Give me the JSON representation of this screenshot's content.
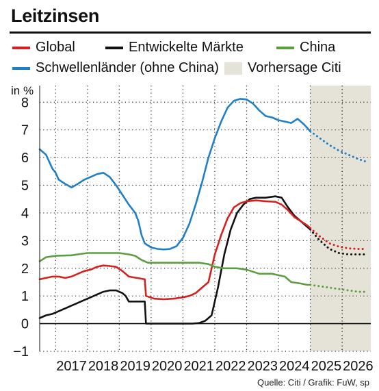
{
  "title": "Leitzinsen",
  "source": "Quelle: Citi / Grafik: FuW, sp",
  "legend": {
    "global": "Global",
    "developed": "Entwickelte Märkte",
    "china": "China",
    "emerging": "Schwellenländer (ohne China)",
    "forecast": "Vorhersage Citi"
  },
  "chart_data": {
    "type": "line",
    "ylabel": "in %",
    "ylim": [
      -1,
      8.6
    ],
    "xlim": [
      2016.5,
      2026.9
    ],
    "yticks": [
      -1,
      0,
      1,
      2,
      3,
      4,
      5,
      6,
      7,
      8
    ],
    "xticks": [
      "2017",
      "2018",
      "2019",
      "2020",
      "2021",
      "2022",
      "2023",
      "2024",
      "2025",
      "2026"
    ],
    "forecast_start": 2025.0,
    "grid": true,
    "colors": {
      "global": "#d62020",
      "developed": "#111111",
      "china": "#5a9e3e",
      "emerging": "#1f7fc8",
      "forecast_band": "#e5e3d8"
    },
    "series": [
      {
        "key": "emerging",
        "name": "Schwellenländer (ohne China)",
        "points": [
          [
            2016.5,
            6.3
          ],
          [
            2016.7,
            6.1
          ],
          [
            2016.9,
            5.6
          ],
          [
            2017.0,
            5.45
          ],
          [
            2017.1,
            5.2
          ],
          [
            2017.3,
            5.05
          ],
          [
            2017.5,
            4.92
          ],
          [
            2017.7,
            5.05
          ],
          [
            2017.9,
            5.2
          ],
          [
            2018.1,
            5.3
          ],
          [
            2018.3,
            5.4
          ],
          [
            2018.5,
            5.45
          ],
          [
            2018.7,
            5.3
          ],
          [
            2018.9,
            5.0
          ],
          [
            2019.1,
            4.65
          ],
          [
            2019.3,
            4.3
          ],
          [
            2019.5,
            4.0
          ],
          [
            2019.6,
            3.7
          ],
          [
            2019.7,
            3.2
          ],
          [
            2019.8,
            2.9
          ],
          [
            2020.0,
            2.75
          ],
          [
            2020.2,
            2.7
          ],
          [
            2020.4,
            2.68
          ],
          [
            2020.6,
            2.7
          ],
          [
            2020.8,
            2.8
          ],
          [
            2021.0,
            3.1
          ],
          [
            2021.2,
            3.6
          ],
          [
            2021.4,
            4.3
          ],
          [
            2021.6,
            5.1
          ],
          [
            2021.8,
            6.0
          ],
          [
            2022.0,
            6.7
          ],
          [
            2022.2,
            7.3
          ],
          [
            2022.4,
            7.8
          ],
          [
            2022.6,
            8.05
          ],
          [
            2022.8,
            8.12
          ],
          [
            2023.0,
            8.1
          ],
          [
            2023.2,
            7.95
          ],
          [
            2023.4,
            7.7
          ],
          [
            2023.6,
            7.5
          ],
          [
            2023.8,
            7.45
          ],
          [
            2024.0,
            7.35
          ],
          [
            2024.2,
            7.3
          ],
          [
            2024.4,
            7.25
          ],
          [
            2024.6,
            7.4
          ],
          [
            2024.8,
            7.2
          ],
          [
            2025.0,
            6.95
          ]
        ],
        "forecast": [
          [
            2025.0,
            6.95
          ],
          [
            2025.3,
            6.7
          ],
          [
            2025.6,
            6.45
          ],
          [
            2025.9,
            6.25
          ],
          [
            2026.2,
            6.1
          ],
          [
            2026.5,
            5.95
          ],
          [
            2026.75,
            5.85
          ]
        ]
      },
      {
        "key": "developed",
        "name": "Entwickelte Märkte",
        "points": [
          [
            2016.5,
            0.2
          ],
          [
            2016.7,
            0.3
          ],
          [
            2016.9,
            0.35
          ],
          [
            2017.1,
            0.45
          ],
          [
            2017.3,
            0.55
          ],
          [
            2017.5,
            0.65
          ],
          [
            2017.7,
            0.75
          ],
          [
            2017.9,
            0.85
          ],
          [
            2018.1,
            0.95
          ],
          [
            2018.3,
            1.05
          ],
          [
            2018.5,
            1.15
          ],
          [
            2018.7,
            1.2
          ],
          [
            2018.9,
            1.2
          ],
          [
            2019.1,
            1.1
          ],
          [
            2019.2,
            1.0
          ],
          [
            2019.3,
            0.8
          ],
          [
            2019.8,
            0.8
          ],
          [
            2019.84,
            0.0
          ],
          [
            2021.3,
            0.0
          ],
          [
            2021.5,
            0.02
          ],
          [
            2021.7,
            0.1
          ],
          [
            2021.9,
            0.3
          ],
          [
            2022.1,
            1.3
          ],
          [
            2022.3,
            2.5
          ],
          [
            2022.5,
            3.4
          ],
          [
            2022.7,
            4.0
          ],
          [
            2022.9,
            4.3
          ],
          [
            2023.1,
            4.5
          ],
          [
            2023.3,
            4.55
          ],
          [
            2023.6,
            4.55
          ],
          [
            2023.9,
            4.6
          ],
          [
            2024.1,
            4.55
          ],
          [
            2024.3,
            4.2
          ],
          [
            2024.5,
            3.9
          ],
          [
            2024.7,
            3.7
          ],
          [
            2024.9,
            3.5
          ],
          [
            2025.0,
            3.4
          ]
        ],
        "forecast": [
          [
            2025.0,
            3.4
          ],
          [
            2025.3,
            3.0
          ],
          [
            2025.6,
            2.7
          ],
          [
            2025.9,
            2.55
          ],
          [
            2026.2,
            2.5
          ],
          [
            2026.5,
            2.5
          ],
          [
            2026.75,
            2.5
          ]
        ]
      },
      {
        "key": "global",
        "name": "Global",
        "points": [
          [
            2016.5,
            1.6
          ],
          [
            2016.7,
            1.65
          ],
          [
            2016.9,
            1.7
          ],
          [
            2017.1,
            1.7
          ],
          [
            2017.3,
            1.65
          ],
          [
            2017.5,
            1.7
          ],
          [
            2017.7,
            1.8
          ],
          [
            2017.9,
            1.9
          ],
          [
            2018.1,
            1.95
          ],
          [
            2018.3,
            2.05
          ],
          [
            2018.5,
            2.1
          ],
          [
            2018.7,
            2.08
          ],
          [
            2018.9,
            2.05
          ],
          [
            2019.1,
            1.9
          ],
          [
            2019.3,
            1.7
          ],
          [
            2019.8,
            1.6
          ],
          [
            2019.84,
            1.0
          ],
          [
            2020.1,
            0.9
          ],
          [
            2020.4,
            0.88
          ],
          [
            2020.7,
            0.9
          ],
          [
            2021.0,
            0.95
          ],
          [
            2021.2,
            1.0
          ],
          [
            2021.4,
            1.1
          ],
          [
            2021.6,
            1.3
          ],
          [
            2021.8,
            1.5
          ],
          [
            2022.0,
            2.5
          ],
          [
            2022.2,
            3.2
          ],
          [
            2022.4,
            3.8
          ],
          [
            2022.6,
            4.2
          ],
          [
            2022.8,
            4.35
          ],
          [
            2023.0,
            4.42
          ],
          [
            2023.3,
            4.45
          ],
          [
            2023.6,
            4.42
          ],
          [
            2023.9,
            4.4
          ],
          [
            2024.1,
            4.3
          ],
          [
            2024.3,
            4.1
          ],
          [
            2024.5,
            3.85
          ],
          [
            2024.7,
            3.7
          ],
          [
            2024.9,
            3.55
          ],
          [
            2025.0,
            3.45
          ]
        ],
        "forecast": [
          [
            2025.0,
            3.45
          ],
          [
            2025.3,
            3.15
          ],
          [
            2025.6,
            2.9
          ],
          [
            2025.9,
            2.78
          ],
          [
            2026.2,
            2.72
          ],
          [
            2026.5,
            2.7
          ],
          [
            2026.75,
            2.7
          ]
        ]
      },
      {
        "key": "china",
        "name": "China",
        "points": [
          [
            2016.5,
            2.25
          ],
          [
            2016.7,
            2.4
          ],
          [
            2017.0,
            2.45
          ],
          [
            2017.5,
            2.47
          ],
          [
            2017.7,
            2.5
          ],
          [
            2018.0,
            2.55
          ],
          [
            2018.5,
            2.55
          ],
          [
            2019.0,
            2.55
          ],
          [
            2019.3,
            2.5
          ],
          [
            2019.5,
            2.45
          ],
          [
            2019.7,
            2.3
          ],
          [
            2019.9,
            2.2
          ],
          [
            2020.5,
            2.2
          ],
          [
            2021.0,
            2.2
          ],
          [
            2021.5,
            2.2
          ],
          [
            2021.8,
            2.15
          ],
          [
            2022.0,
            2.05
          ],
          [
            2022.3,
            2.0
          ],
          [
            2022.7,
            2.0
          ],
          [
            2023.0,
            1.95
          ],
          [
            2023.4,
            1.8
          ],
          [
            2023.8,
            1.8
          ],
          [
            2024.0,
            1.75
          ],
          [
            2024.2,
            1.7
          ],
          [
            2024.4,
            1.5
          ],
          [
            2024.7,
            1.45
          ],
          [
            2024.9,
            1.4
          ],
          [
            2025.0,
            1.4
          ]
        ],
        "forecast": [
          [
            2025.0,
            1.4
          ],
          [
            2025.3,
            1.35
          ],
          [
            2025.6,
            1.3
          ],
          [
            2025.9,
            1.25
          ],
          [
            2026.2,
            1.2
          ],
          [
            2026.5,
            1.15
          ],
          [
            2026.75,
            1.15
          ]
        ]
      }
    ]
  }
}
